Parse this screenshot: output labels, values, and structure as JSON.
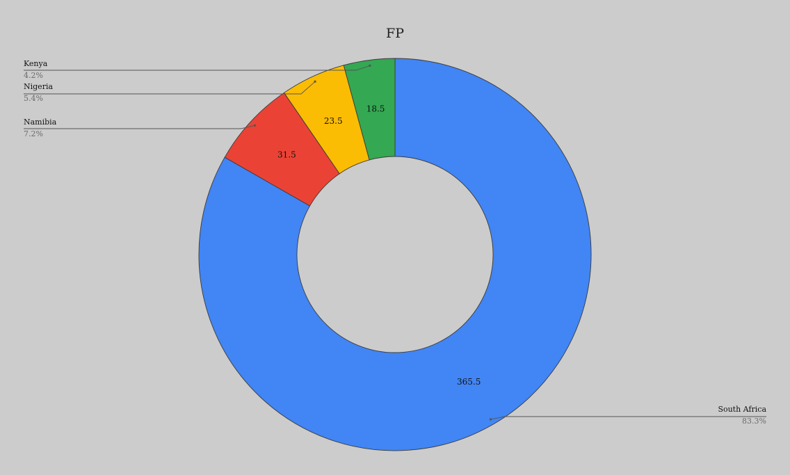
{
  "chart_data": {
    "type": "pie",
    "variant": "donut",
    "title": "FP",
    "legend_placement": "callout-labels",
    "slices": [
      {
        "name": "South Africa",
        "value": 365.5,
        "value_label": "365.5",
        "percent_label": "83.3%",
        "color": "#4285f4"
      },
      {
        "name": "Namibia",
        "value": 31.5,
        "value_label": "31.5",
        "percent_label": "7.2%",
        "color": "#ea4335"
      },
      {
        "name": "Nigeria",
        "value": 23.5,
        "value_label": "23.5",
        "percent_label": "5.4%",
        "color": "#fbbc04"
      },
      {
        "name": "Kenya",
        "value": 18.5,
        "value_label": "18.5",
        "percent_label": "4.2%",
        "color": "#34a853"
      }
    ]
  },
  "colors": {
    "background": "#cccccc",
    "slice_stroke": "#3a3a3a",
    "leader_line": "#555555"
  }
}
